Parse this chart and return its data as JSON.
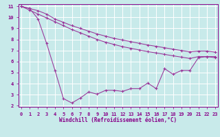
{
  "xlabel": "Windchill (Refroidissement éolien,°C)",
  "bg_color": "#c8eaea",
  "grid_color": "#aadddd",
  "line_color": "#993399",
  "line1_x": [
    0,
    1,
    2,
    3,
    4,
    5,
    6,
    7,
    8,
    9,
    10,
    11,
    12,
    13,
    14,
    15,
    16,
    17,
    18,
    19,
    20,
    21,
    22,
    23
  ],
  "line1_y": [
    11.0,
    10.8,
    10.6,
    10.3,
    9.85,
    9.55,
    9.25,
    9.0,
    8.75,
    8.5,
    8.3,
    8.1,
    7.95,
    7.8,
    7.65,
    7.5,
    7.38,
    7.25,
    7.12,
    7.0,
    6.88,
    6.95,
    6.95,
    6.85
  ],
  "line2_x": [
    0,
    1,
    2,
    3,
    4,
    5,
    6,
    7,
    8,
    9,
    10,
    11,
    12,
    13,
    14,
    15,
    16,
    17,
    18,
    19,
    20,
    21,
    22,
    23
  ],
  "line2_y": [
    11.0,
    10.65,
    10.3,
    9.95,
    9.6,
    9.25,
    8.9,
    8.6,
    8.3,
    8.0,
    7.75,
    7.55,
    7.35,
    7.2,
    7.05,
    6.9,
    6.78,
    6.65,
    6.52,
    6.4,
    6.28,
    6.45,
    6.45,
    6.35
  ],
  "line3_x": [
    0,
    1,
    2,
    3,
    4,
    5,
    6,
    7,
    8,
    9,
    10,
    11,
    12,
    13,
    14,
    15,
    16,
    17,
    18,
    19,
    20,
    21,
    22,
    23
  ],
  "line3_y": [
    11.0,
    10.8,
    9.85,
    7.65,
    5.2,
    2.65,
    2.25,
    2.7,
    3.25,
    3.05,
    3.4,
    3.4,
    3.3,
    3.55,
    3.55,
    4.05,
    3.55,
    5.35,
    4.85,
    5.2,
    5.2,
    6.35,
    6.45,
    6.45
  ],
  "xlim": [
    0,
    23
  ],
  "ylim": [
    2.0,
    11.0
  ],
  "yticks": [
    2,
    3,
    4,
    5,
    6,
    7,
    8,
    9,
    10,
    11
  ],
  "xticks": [
    0,
    1,
    2,
    3,
    4,
    5,
    6,
    7,
    8,
    9,
    10,
    11,
    12,
    13,
    14,
    15,
    16,
    17,
    18,
    19,
    20,
    21,
    22,
    23
  ],
  "marker": "P",
  "marker_size": 1.8,
  "linewidth": 0.75
}
